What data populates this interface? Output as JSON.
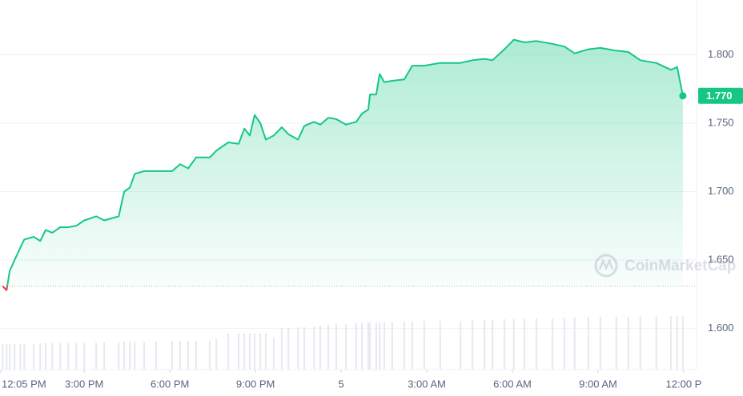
{
  "chart_data": {
    "type": "line",
    "color": "#16c784",
    "down_color": "#ea3943",
    "x": [
      0.14,
      0.28,
      0.39,
      0.56,
      0.76,
      0.9,
      1.23,
      1.46,
      1.65,
      1.88,
      2.16,
      2.44,
      2.72,
      3.0,
      3.42,
      3.7,
      4.21,
      4.4,
      4.6,
      4.77,
      5.1,
      5.52,
      6.08,
      6.36,
      6.64,
      6.92,
      7.4,
      7.63,
      8.05,
      8.41,
      8.61,
      8.8,
      8.97,
      9.17,
      9.36,
      9.64,
      9.92,
      10.15,
      10.49,
      10.71,
      11.05,
      11.27,
      11.55,
      11.83,
      12.17,
      12.53,
      12.73,
      12.95,
      13.01,
      13.23,
      13.35,
      13.51,
      13.79,
      14.21,
      14.49,
      14.91,
      15.47,
      16.18,
      16.6,
      17.02,
      17.3,
      17.72,
      18.05,
      18.42,
      18.84,
      19.4,
      19.82,
      20.18,
      20.66,
      21.08,
      21.64,
      22.06,
      22.48,
      23.04,
      23.55,
      23.77,
      23.97
    ],
    "values": [
      1.631,
      1.628,
      1.642,
      1.65,
      1.659,
      1.665,
      1.667,
      1.664,
      1.672,
      1.67,
      1.674,
      1.674,
      1.675,
      1.679,
      1.682,
      1.679,
      1.682,
      1.7,
      1.703,
      1.713,
      1.715,
      1.715,
      1.715,
      1.72,
      1.717,
      1.725,
      1.725,
      1.73,
      1.736,
      1.735,
      1.746,
      1.741,
      1.756,
      1.75,
      1.738,
      1.741,
      1.747,
      1.742,
      1.738,
      1.748,
      1.751,
      1.749,
      1.754,
      1.753,
      1.749,
      1.751,
      1.757,
      1.76,
      1.771,
      1.771,
      1.786,
      1.78,
      1.781,
      1.782,
      1.792,
      1.792,
      1.794,
      1.794,
      1.796,
      1.797,
      1.796,
      1.804,
      1.811,
      1.809,
      1.81,
      1.808,
      1.806,
      1.801,
      1.804,
      1.805,
      1.803,
      1.802,
      1.796,
      1.794,
      1.789,
      1.791,
      1.77
    ],
    "volume": [
      32,
      32,
      32,
      32,
      32,
      32,
      32,
      33,
      33,
      33,
      33,
      33,
      33,
      34,
      34,
      34,
      34,
      35,
      35,
      35,
      35,
      35,
      36,
      36,
      36,
      36,
      36,
      38,
      45,
      45,
      45,
      45,
      45,
      45,
      45,
      40,
      52,
      52,
      53,
      53,
      54,
      55,
      56,
      57,
      57,
      58,
      58,
      59,
      59,
      59,
      59,
      59,
      60,
      60,
      61,
      61,
      61,
      61,
      62,
      62,
      62,
      63,
      63,
      64,
      64,
      64,
      65,
      65,
      66,
      66,
      66,
      66,
      67,
      67,
      67,
      67,
      67
    ],
    "current_price": {
      "value": 1.77,
      "label": "1.770"
    },
    "xlim": [
      0.05,
      24.45
    ],
    "ylim": [
      1.57,
      1.84
    ],
    "yticks": [
      {
        "value": 1.6,
        "label": "1.600"
      },
      {
        "value": 1.65,
        "label": "1.650"
      },
      {
        "value": 1.7,
        "label": "1.700"
      },
      {
        "value": 1.75,
        "label": "1.750"
      },
      {
        "value": 1.8,
        "label": "1.800"
      }
    ],
    "xticks": [
      {
        "value": 0.083,
        "label": "12:05 PM"
      },
      {
        "value": 3,
        "label": "3:00 PM"
      },
      {
        "value": 6,
        "label": "6:00 PM"
      },
      {
        "value": 9,
        "label": "9:00 PM"
      },
      {
        "value": 12,
        "label": "5"
      },
      {
        "value": 15,
        "label": "3:00 AM"
      },
      {
        "value": 18,
        "label": "6:00 AM"
      },
      {
        "value": 21,
        "label": "9:00 AM"
      },
      {
        "value": 24,
        "label": "12:00 P"
      }
    ],
    "grid": true,
    "watermark": "CoinMarketCap"
  }
}
